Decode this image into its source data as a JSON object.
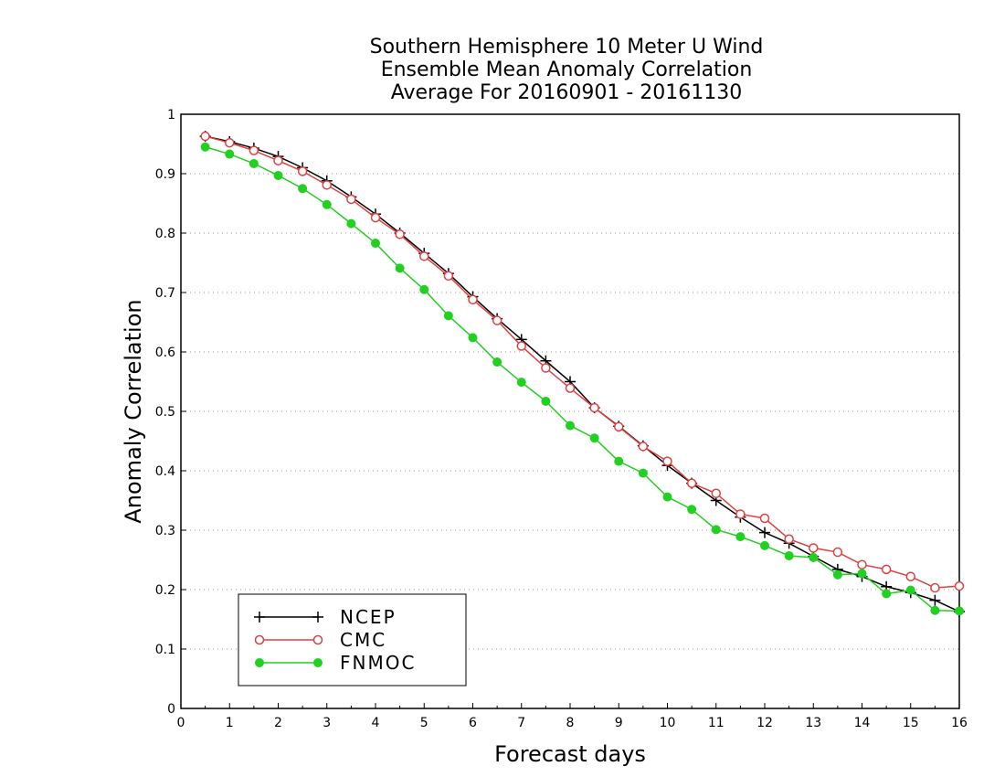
{
  "chart_data": {
    "type": "line",
    "title": [
      "Southern Hemisphere 10 Meter U Wind",
      "Ensemble Mean Anomaly Correlation",
      "Average For 20160901 - 20161130"
    ],
    "xlabel": "Forecast days",
    "ylabel": "Anomaly Correlation",
    "xlim": [
      0,
      16
    ],
    "ylim": [
      0,
      1
    ],
    "xticks": [
      "0",
      "1",
      "2",
      "3",
      "4",
      "5",
      "6",
      "7",
      "8",
      "9",
      "10",
      "11",
      "12",
      "13",
      "14",
      "15",
      "16"
    ],
    "yticks": [
      "0",
      "0.1",
      "0.2",
      "0.3",
      "0.4",
      "0.5",
      "0.6",
      "0.7",
      "0.8",
      "0.9",
      "1"
    ],
    "grid": "horizontal dotted",
    "legend_position": "bottom-left",
    "x": [
      0.5,
      1,
      1.5,
      2,
      2.5,
      3,
      3.5,
      4,
      4.5,
      5,
      5.5,
      6,
      6.5,
      7,
      7.5,
      8,
      8.5,
      9,
      9.5,
      10,
      10.5,
      11,
      11.5,
      12,
      12.5,
      13,
      13.5,
      14,
      14.5,
      15,
      15.5,
      16
    ],
    "series": [
      {
        "name": "NCEP",
        "color": "#000000",
        "marker": "plus",
        "values": [
          0.963,
          0.954,
          0.943,
          0.929,
          0.91,
          0.888,
          0.861,
          0.832,
          0.8,
          0.766,
          0.732,
          0.693,
          0.656,
          0.621,
          0.585,
          0.55,
          0.506,
          0.475,
          0.442,
          0.409,
          0.379,
          0.35,
          0.322,
          0.296,
          0.278,
          0.256,
          0.234,
          0.222,
          0.205,
          0.195,
          0.182,
          0.163
        ]
      },
      {
        "name": "CMC",
        "color": "#e04040",
        "marker": "open-circle",
        "values": [
          0.963,
          0.952,
          0.939,
          0.922,
          0.904,
          0.881,
          0.857,
          0.826,
          0.798,
          0.761,
          0.728,
          0.688,
          0.653,
          0.61,
          0.573,
          0.539,
          0.506,
          0.474,
          0.441,
          0.416,
          0.379,
          0.362,
          0.327,
          0.32,
          0.285,
          0.27,
          0.263,
          0.242,
          0.234,
          0.222,
          0.203,
          0.206
        ]
      },
      {
        "name": "FNMOC",
        "color": "#22d022",
        "marker": "filled-circle",
        "values": [
          0.945,
          0.933,
          0.917,
          0.897,
          0.875,
          0.848,
          0.816,
          0.783,
          0.741,
          0.705,
          0.661,
          0.624,
          0.583,
          0.549,
          0.517,
          0.476,
          0.455,
          0.416,
          0.396,
          0.356,
          0.335,
          0.301,
          0.289,
          0.274,
          0.257,
          0.254,
          0.225,
          0.227,
          0.193,
          0.199,
          0.165,
          0.164
        ]
      }
    ]
  }
}
